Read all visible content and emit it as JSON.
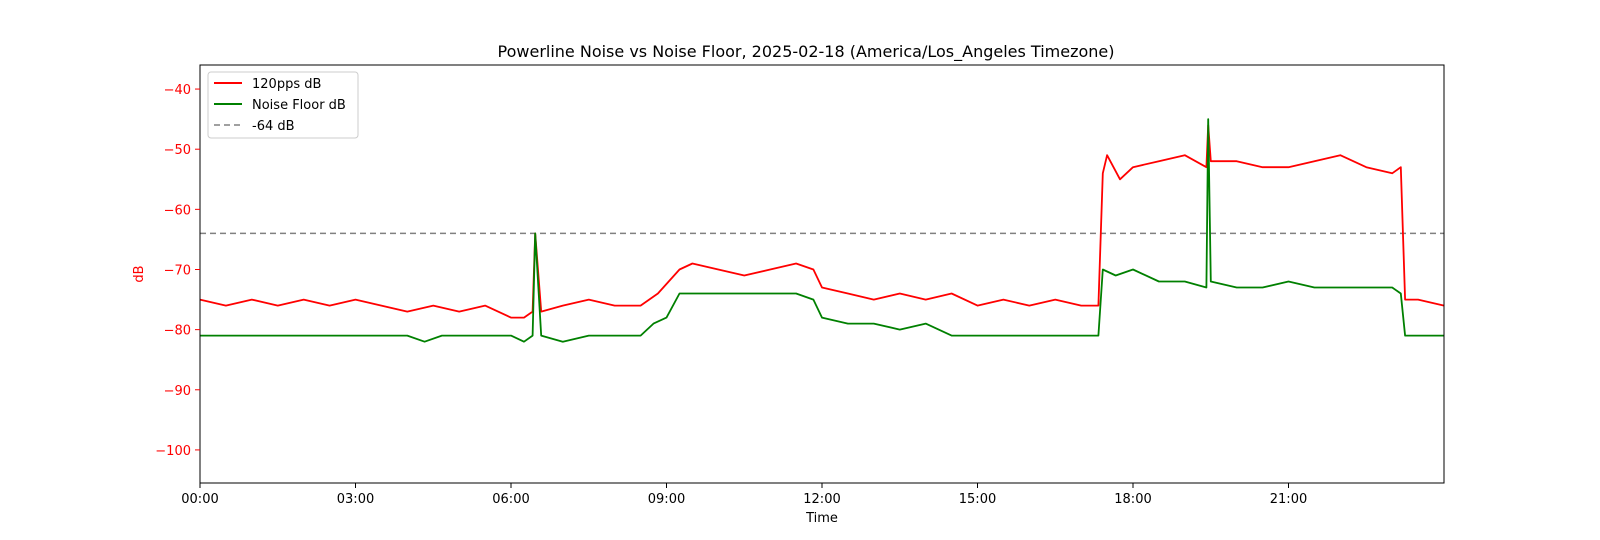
{
  "chart_data": {
    "type": "line",
    "title": "Powerline Noise vs Noise Floor, 2025-02-18 (America/Los_Angeles Timezone)",
    "xlabel": "Time",
    "ylabel": "dB",
    "ylabel_color": "#ff0000",
    "ytick_color": "#ff0000",
    "xlim": [
      "00:00",
      "24:00"
    ],
    "ylim": [
      -105.5,
      -36
    ],
    "x_ticks": [
      "00:00",
      "03:00",
      "06:00",
      "09:00",
      "12:00",
      "15:00",
      "18:00",
      "21:00"
    ],
    "y_ticks": [
      -40,
      -50,
      -60,
      -70,
      -80,
      -90,
      -100
    ],
    "y_tick_labels": [
      "−40",
      "−50",
      "−60",
      "−70",
      "−80",
      "−90",
      "−100"
    ],
    "grid": false,
    "legend_position": "upper-left",
    "legend": [
      "120pps dB",
      "Noise Floor dB",
      "-64 dB"
    ],
    "reference_line": {
      "name": "-64 dB",
      "y": -64,
      "color": "#808080",
      "style": "dashed"
    },
    "series": [
      {
        "name": "120pps dB",
        "color": "#ff0000",
        "x": [
          "00:00",
          "00:30",
          "01:00",
          "01:30",
          "02:00",
          "02:30",
          "03:00",
          "03:30",
          "04:00",
          "04:30",
          "05:00",
          "05:30",
          "06:00",
          "06:15",
          "06:25",
          "06:28",
          "06:35",
          "07:00",
          "07:30",
          "08:00",
          "08:30",
          "08:50",
          "09:15",
          "09:30",
          "10:00",
          "10:30",
          "11:00",
          "11:30",
          "11:50",
          "12:00",
          "12:30",
          "13:00",
          "13:30",
          "14:00",
          "14:30",
          "15:00",
          "15:30",
          "16:00",
          "16:30",
          "17:00",
          "17:20",
          "17:25",
          "17:30",
          "17:45",
          "18:00",
          "18:30",
          "19:00",
          "19:25",
          "19:27",
          "19:30",
          "20:00",
          "20:30",
          "21:00",
          "21:30",
          "22:00",
          "22:30",
          "23:00",
          "23:10",
          "23:15",
          "23:30",
          "24:00"
        ],
        "y": [
          -75,
          -76,
          -75,
          -76,
          -75,
          -76,
          -75,
          -76,
          -77,
          -76,
          -77,
          -76,
          -78,
          -78,
          -77,
          -64,
          -77,
          -76,
          -75,
          -76,
          -76,
          -74,
          -70,
          -69,
          -70,
          -71,
          -70,
          -69,
          -70,
          -73,
          -74,
          -75,
          -74,
          -75,
          -74,
          -76,
          -75,
          -76,
          -75,
          -76,
          -76,
          -54,
          -51,
          -55,
          -53,
          -52,
          -51,
          -53,
          -46,
          -52,
          -52,
          -53,
          -53,
          -52,
          -51,
          -53,
          -54,
          -53,
          -75,
          -75,
          -76
        ]
      },
      {
        "name": "Noise Floor dB",
        "color": "#008000",
        "x": [
          "00:00",
          "00:30",
          "01:00",
          "01:30",
          "02:00",
          "02:30",
          "03:00",
          "03:30",
          "04:00",
          "04:20",
          "04:40",
          "05:00",
          "05:30",
          "06:00",
          "06:15",
          "06:25",
          "06:28",
          "06:35",
          "07:00",
          "07:30",
          "08:00",
          "08:30",
          "08:45",
          "09:00",
          "09:15",
          "09:30",
          "10:00",
          "10:30",
          "11:00",
          "11:30",
          "11:50",
          "12:00",
          "12:30",
          "13:00",
          "13:30",
          "14:00",
          "14:30",
          "15:00",
          "15:30",
          "16:00",
          "16:30",
          "17:00",
          "17:20",
          "17:25",
          "17:40",
          "18:00",
          "18:30",
          "19:00",
          "19:25",
          "19:27",
          "19:30",
          "20:00",
          "20:30",
          "21:00",
          "21:30",
          "22:00",
          "22:30",
          "23:00",
          "23:10",
          "23:15",
          "23:30",
          "24:00"
        ],
        "y": [
          -81,
          -81,
          -81,
          -81,
          -81,
          -81,
          -81,
          -81,
          -81,
          -82,
          -81,
          -81,
          -81,
          -81,
          -82,
          -81,
          -64,
          -81,
          -82,
          -81,
          -81,
          -81,
          -79,
          -78,
          -74,
          -74,
          -74,
          -74,
          -74,
          -74,
          -75,
          -78,
          -79,
          -79,
          -80,
          -79,
          -81,
          -81,
          -81,
          -81,
          -81,
          -81,
          -81,
          -70,
          -71,
          -70,
          -72,
          -72,
          -73,
          -45,
          -72,
          -73,
          -73,
          -72,
          -73,
          -73,
          -73,
          -73,
          -74,
          -81,
          -81,
          -81
        ]
      }
    ]
  }
}
